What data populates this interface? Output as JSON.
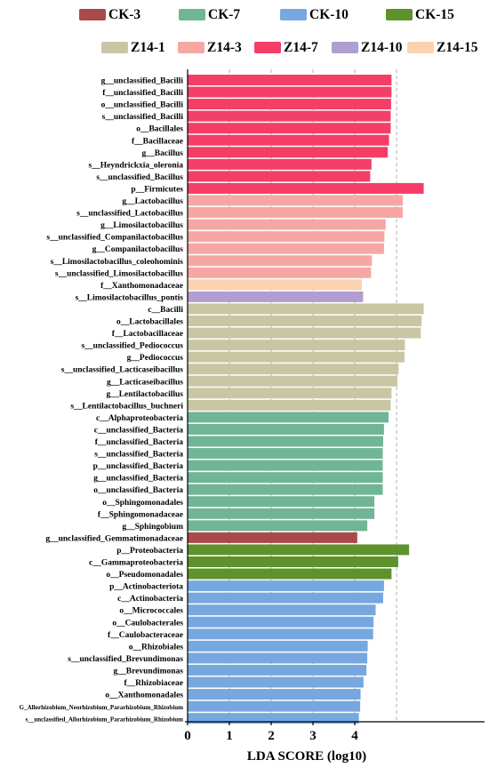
{
  "colors": {
    "CK-3": "#a94a4a",
    "CK-7": "#6fb596",
    "CK-10": "#76a8df",
    "CK-15": "#5e922d",
    "Z14-1": "#c9c6a3",
    "Z14-3": "#f7a7a3",
    "Z14-7": "#f53e66",
    "Z14-10": "#b19ed0",
    "Z14-15": "#fbd2b0"
  },
  "chart_data": {
    "type": "bar",
    "orientation": "horizontal",
    "xlabel": "LDA SCORE  (log10)",
    "xlim": [
      0,
      5.7
    ],
    "xticks": [
      "0",
      "1",
      "2",
      "3",
      "4"
    ],
    "grid": "vertical dashed",
    "legend": {
      "placement": "top",
      "entries": [
        "CK-3",
        "CK-7",
        "CK-10",
        "CK-15",
        "Z14-1",
        "Z14-3",
        "Z14-7",
        "Z14-10",
        "Z14-15"
      ]
    },
    "bars": [
      {
        "label": "g__unclassified_Bacilli",
        "value": 4.88,
        "group": "Z14-7"
      },
      {
        "label": "f__unclassified_Bacilli",
        "value": 4.88,
        "group": "Z14-7"
      },
      {
        "label": "o__unclassified_Bacilli",
        "value": 4.87,
        "group": "Z14-7"
      },
      {
        "label": "s__unclassified_Bacilli",
        "value": 4.86,
        "group": "Z14-7"
      },
      {
        "label": "o__Bacillales",
        "value": 4.86,
        "group": "Z14-7"
      },
      {
        "label": "f__Bacillaceae",
        "value": 4.82,
        "group": "Z14-7"
      },
      {
        "label": "g__Bacillus",
        "value": 4.79,
        "group": "Z14-7"
      },
      {
        "label": "s__Heyndrickxia_oleronia",
        "value": 4.4,
        "group": "Z14-7"
      },
      {
        "label": "s__unclassified_Bacillus",
        "value": 4.37,
        "group": "Z14-7"
      },
      {
        "label": "p__Firmicutes",
        "value": 5.65,
        "group": "Z14-7"
      },
      {
        "label": "g__Lactobacillus",
        "value": 5.15,
        "group": "Z14-3"
      },
      {
        "label": "s__unclassified_Lactobacillus",
        "value": 5.15,
        "group": "Z14-3"
      },
      {
        "label": "g__Limosilactobacillus",
        "value": 4.74,
        "group": "Z14-3"
      },
      {
        "label": "s__unclassified_Companilactobacillus",
        "value": 4.71,
        "group": "Z14-3"
      },
      {
        "label": "g__Companilactobacillus",
        "value": 4.7,
        "group": "Z14-3"
      },
      {
        "label": "s__Limosilactobacillus_coleohominis",
        "value": 4.41,
        "group": "Z14-3"
      },
      {
        "label": "s__unclassified_Limosilactobacillus",
        "value": 4.39,
        "group": "Z14-3"
      },
      {
        "label": "f__Xanthomonadaceae",
        "value": 4.17,
        "group": "Z14-15"
      },
      {
        "label": "s__Limosilactobacillus_pontis",
        "value": 4.2,
        "group": "Z14-10"
      },
      {
        "label": "c__Bacilli",
        "value": 5.65,
        "group": "Z14-1"
      },
      {
        "label": "o__Lactobacillales",
        "value": 5.6,
        "group": "Z14-1"
      },
      {
        "label": "f__Lactobacillaceae",
        "value": 5.58,
        "group": "Z14-1"
      },
      {
        "label": "s__unclassified_Pediococcus",
        "value": 5.2,
        "group": "Z14-1"
      },
      {
        "label": "g__Pediococcus",
        "value": 5.19,
        "group": "Z14-1"
      },
      {
        "label": "s__unclassified_Lacticaseibacillus",
        "value": 5.05,
        "group": "Z14-1"
      },
      {
        "label": "g__Lacticaseibacillus",
        "value": 5.02,
        "group": "Z14-1"
      },
      {
        "label": "g__Lentilactobacillus",
        "value": 4.88,
        "group": "Z14-1"
      },
      {
        "label": "s__Lentilactobacillus_buchneri",
        "value": 4.86,
        "group": "Z14-1"
      },
      {
        "label": "c__Alphaproteobacteria",
        "value": 4.81,
        "group": "CK-7"
      },
      {
        "label": "c__unclassified_Bacteria",
        "value": 4.7,
        "group": "CK-7"
      },
      {
        "label": "f__unclassified_Bacteria",
        "value": 4.68,
        "group": "CK-7"
      },
      {
        "label": "s__unclassified_Bacteria",
        "value": 4.67,
        "group": "CK-7"
      },
      {
        "label": "p__unclassified_Bacteria",
        "value": 4.67,
        "group": "CK-7"
      },
      {
        "label": "g__unclassified_Bacteria",
        "value": 4.67,
        "group": "CK-7"
      },
      {
        "label": "o__unclassified_Bacteria",
        "value": 4.67,
        "group": "CK-7"
      },
      {
        "label": "o__Sphingomonadales",
        "value": 4.47,
        "group": "CK-7"
      },
      {
        "label": "f__Sphingomonadaceae",
        "value": 4.47,
        "group": "CK-7"
      },
      {
        "label": "g__Sphingobium",
        "value": 4.3,
        "group": "CK-7"
      },
      {
        "label": "g__unclassified_Gemmatimonadaceae",
        "value": 4.06,
        "group": "CK-3"
      },
      {
        "label": "p__Proteobacteria",
        "value": 5.3,
        "group": "CK-15"
      },
      {
        "label": "c__Gammaproteobacteria",
        "value": 5.04,
        "group": "CK-15"
      },
      {
        "label": "o__Pseudomonadales",
        "value": 4.88,
        "group": "CK-15"
      },
      {
        "label": "p__Actinobacteriota",
        "value": 4.7,
        "group": "CK-10"
      },
      {
        "label": "c__Actinobacteria",
        "value": 4.68,
        "group": "CK-10"
      },
      {
        "label": "o__Micrococcales",
        "value": 4.5,
        "group": "CK-10"
      },
      {
        "label": "o__Caulobacterales",
        "value": 4.45,
        "group": "CK-10"
      },
      {
        "label": "f__Caulobacteraceae",
        "value": 4.44,
        "group": "CK-10"
      },
      {
        "label": "o__Rhizobiales",
        "value": 4.31,
        "group": "CK-10"
      },
      {
        "label": "s__unclassified_Brevundimonas",
        "value": 4.3,
        "group": "CK-10"
      },
      {
        "label": "g__Brevundimonas",
        "value": 4.28,
        "group": "CK-10"
      },
      {
        "label": "f__Rhizobiaceae",
        "value": 4.21,
        "group": "CK-10"
      },
      {
        "label": "o__Xanthomonadales",
        "value": 4.14,
        "group": "CK-10"
      },
      {
        "label": "G_Allorhizobium_Neorhizobium_Pararhizobium_Rhizobium",
        "value": 4.13,
        "group": "CK-10"
      },
      {
        "label": "s__unclassified_Allorhizobium_Pararhizobium_Rhizobium",
        "value": 4.1,
        "group": "CK-10"
      }
    ]
  }
}
